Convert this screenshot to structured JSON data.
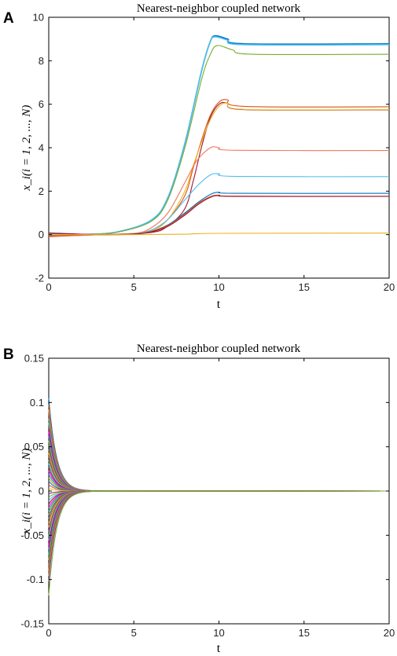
{
  "chart_data": [
    {
      "panel_label": "A",
      "type": "line",
      "title": "Nearest-neighbor coupled network",
      "xlabel": "t",
      "ylabel": "x_i(i = 1, 2, ..., N)",
      "xlim": [
        0,
        20
      ],
      "ylim": [
        -2,
        10
      ],
      "xticks": [
        "0",
        "5",
        "10",
        "15",
        "20"
      ],
      "yticks": [
        "-2",
        "0",
        "2",
        "4",
        "6",
        "8",
        "10"
      ],
      "grid": false,
      "series": [
        {
          "color": "#0072BD",
          "values": [
            [
              0,
              0.05
            ],
            [
              2,
              0.01
            ],
            [
              4,
              0.12
            ],
            [
              6,
              0.65
            ],
            [
              7,
              1.7
            ],
            [
              8,
              4.2
            ],
            [
              9,
              7.6
            ],
            [
              9.5,
              8.9
            ],
            [
              9.8,
              9.15
            ],
            [
              10.5,
              9.0
            ],
            [
              11.5,
              8.78
            ],
            [
              20,
              8.78
            ]
          ]
        },
        {
          "color": "#4DBEEE",
          "values": [
            [
              0,
              0.0
            ],
            [
              2,
              0.01
            ],
            [
              4,
              0.12
            ],
            [
              6,
              0.65
            ],
            [
              7,
              1.7
            ],
            [
              8,
              4.2
            ],
            [
              9,
              7.6
            ],
            [
              9.5,
              8.9
            ],
            [
              9.8,
              9.1
            ],
            [
              10.5,
              8.95
            ],
            [
              11.5,
              8.74
            ],
            [
              20,
              8.74
            ]
          ]
        },
        {
          "color": "#77AC30",
          "values": [
            [
              0,
              0.03
            ],
            [
              2,
              0.01
            ],
            [
              4,
              0.11
            ],
            [
              6,
              0.6
            ],
            [
              7,
              1.6
            ],
            [
              8,
              4.0
            ],
            [
              9,
              7.2
            ],
            [
              9.5,
              8.3
            ],
            [
              9.9,
              8.7
            ],
            [
              10.8,
              8.5
            ],
            [
              12,
              8.3
            ],
            [
              20,
              8.3
            ]
          ]
        },
        {
          "color": "#D95319",
          "values": [
            [
              0,
              -0.05
            ],
            [
              3,
              0.0
            ],
            [
              5,
              0.04
            ],
            [
              6,
              0.2
            ],
            [
              7,
              0.7
            ],
            [
              8,
              1.8
            ],
            [
              8.5,
              3.1
            ],
            [
              9,
              4.4
            ],
            [
              9.5,
              5.5
            ],
            [
              10,
              6.1
            ],
            [
              10.5,
              6.2
            ],
            [
              11.5,
              5.9
            ],
            [
              20,
              5.88
            ]
          ]
        },
        {
          "color": "#A2142F",
          "values": [
            [
              0,
              -0.08
            ],
            [
              3,
              0.0
            ],
            [
              6,
              0.1
            ],
            [
              7,
              0.4
            ],
            [
              8,
              1.2
            ],
            [
              8.5,
              2.5
            ],
            [
              9,
              4.1
            ],
            [
              9.5,
              5.4
            ],
            [
              10,
              6.0
            ],
            [
              10.5,
              6.05
            ],
            [
              11.5,
              5.75
            ],
            [
              20,
              5.74
            ]
          ]
        },
        {
          "color": "#EDB120",
          "values": [
            [
              0,
              0.02
            ],
            [
              4,
              0.02
            ],
            [
              6,
              0.2
            ],
            [
              7,
              0.7
            ],
            [
              8,
              2.0
            ],
            [
              8.5,
              3.2
            ],
            [
              9,
              4.3
            ],
            [
              9.5,
              5.3
            ],
            [
              10,
              5.9
            ],
            [
              10.5,
              6.05
            ],
            [
              11.5,
              5.76
            ],
            [
              20,
              5.75
            ]
          ]
        },
        {
          "color": "#F07860",
          "values": [
            [
              0,
              -0.1
            ],
            [
              3,
              0.0
            ],
            [
              5,
              0.05
            ],
            [
              6,
              0.3
            ],
            [
              7,
              1.0
            ],
            [
              8,
              2.4
            ],
            [
              8.7,
              3.4
            ],
            [
              9.5,
              4.0
            ],
            [
              10,
              4.0
            ],
            [
              11,
              3.88
            ],
            [
              20,
              3.87
            ]
          ]
        },
        {
          "color": "#4DBEEE",
          "values": [
            [
              0,
              -0.04
            ],
            [
              3,
              0.0
            ],
            [
              5,
              0.04
            ],
            [
              6,
              0.2
            ],
            [
              7,
              0.7
            ],
            [
              8,
              1.6
            ],
            [
              8.8,
              2.3
            ],
            [
              9.5,
              2.75
            ],
            [
              10,
              2.8
            ],
            [
              11,
              2.68
            ],
            [
              20,
              2.67
            ]
          ]
        },
        {
          "color": "#0072BD",
          "values": [
            [
              0,
              0.06
            ],
            [
              3,
              0.0
            ],
            [
              5,
              0.03
            ],
            [
              6,
              0.15
            ],
            [
              7,
              0.45
            ],
            [
              8,
              1.0
            ],
            [
              8.8,
              1.5
            ],
            [
              9.5,
              1.85
            ],
            [
              10,
              1.95
            ],
            [
              11,
              1.9
            ],
            [
              20,
              1.9
            ]
          ]
        },
        {
          "color": "#D95319",
          "values": [
            [
              0,
              -0.06
            ],
            [
              3,
              0.0
            ],
            [
              5,
              0.03
            ],
            [
              6,
              0.14
            ],
            [
              7,
              0.42
            ],
            [
              8,
              0.95
            ],
            [
              8.8,
              1.45
            ],
            [
              9.5,
              1.75
            ],
            [
              10,
              1.82
            ],
            [
              11,
              1.77
            ],
            [
              20,
              1.76
            ]
          ]
        },
        {
          "color": "#A2142F",
          "values": [
            [
              0,
              0.08
            ],
            [
              3,
              0.0
            ],
            [
              5,
              0.02
            ],
            [
              6,
              0.12
            ],
            [
              7,
              0.38
            ],
            [
              8,
              0.9
            ],
            [
              8.8,
              1.4
            ],
            [
              9.5,
              1.72
            ],
            [
              10,
              1.8
            ],
            [
              11,
              1.76
            ],
            [
              20,
              1.76
            ]
          ]
        },
        {
          "color": "#EDB120",
          "values": [
            [
              0,
              0.0
            ],
            [
              5,
              0.0
            ],
            [
              8,
              0.02
            ],
            [
              10,
              0.06
            ],
            [
              20,
              0.07
            ]
          ]
        }
      ]
    },
    {
      "panel_label": "B",
      "type": "line",
      "title": "Nearest-neighbor coupled network",
      "xlabel": "t",
      "ylabel": "x_i(i = 1, 2, ..., N)",
      "xlim": [
        0,
        20
      ],
      "ylim": [
        -0.15,
        0.15
      ],
      "xticks": [
        "0",
        "5",
        "10",
        "15",
        "20"
      ],
      "yticks": [
        "-0.15",
        "-0.1",
        "-0.05",
        "0",
        "0.05",
        "0.1",
        "0.15"
      ],
      "grid": false,
      "decay_rate": 2.2,
      "series_colors": [
        "#0072BD",
        "#D95319",
        "#EDB120",
        "#7E2F8E",
        "#77AC30",
        "#4DBEEE",
        "#A2142F",
        "#FF00FF",
        "#00A0A0",
        "#C8A000"
      ],
      "initial_values": [
        0.105,
        0.098,
        0.092,
        0.087,
        0.082,
        0.077,
        0.072,
        0.067,
        0.062,
        0.057,
        0.052,
        0.047,
        0.043,
        0.039,
        0.035,
        0.031,
        0.027,
        0.023,
        0.019,
        0.015,
        0.011,
        0.007,
        0.003,
        -0.003,
        -0.007,
        -0.011,
        -0.015,
        -0.019,
        -0.023,
        -0.027,
        -0.031,
        -0.036,
        -0.041,
        -0.046,
        -0.051,
        -0.056,
        -0.061,
        -0.066,
        -0.072,
        -0.078,
        -0.084,
        -0.09,
        -0.096,
        -0.102,
        -0.118
      ]
    }
  ]
}
